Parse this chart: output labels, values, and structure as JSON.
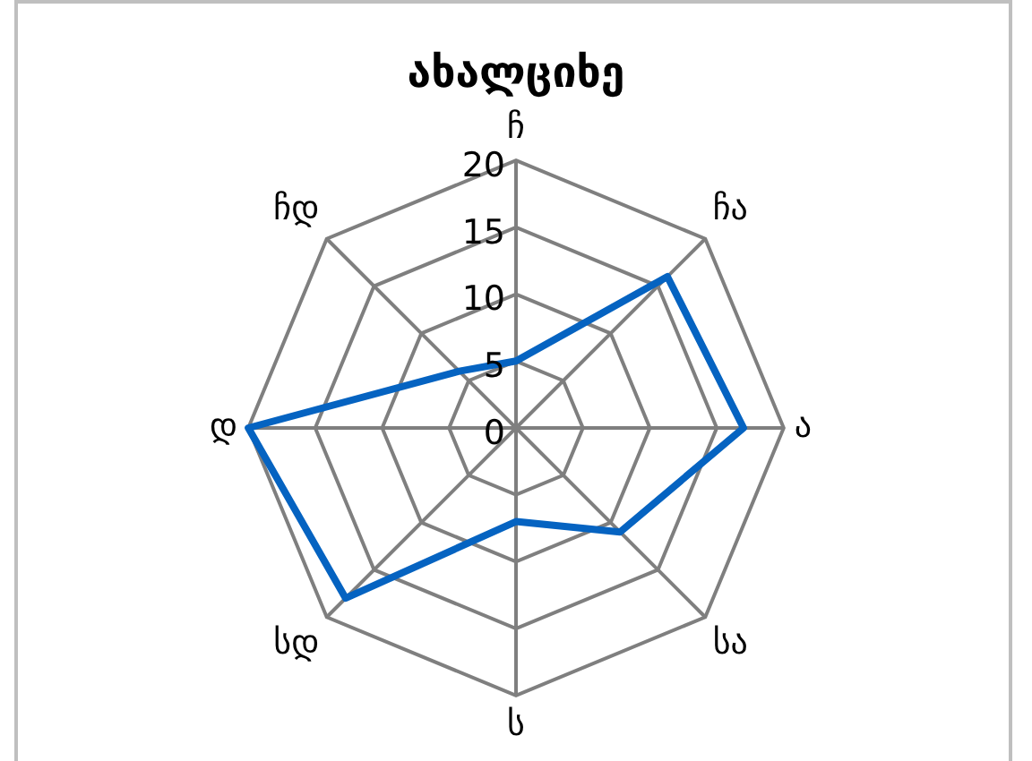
{
  "chart_data": {
    "type": "radar",
    "title": "ახალციხე",
    "categories": [
      "ჩ",
      "ჩა",
      "ა",
      "სა",
      "ს",
      "სდ",
      "დ",
      "ჩდ"
    ],
    "series": [
      {
        "color": "#0563c1",
        "values": [
          5,
          16,
          17,
          11,
          7,
          18,
          20,
          6
        ]
      }
    ],
    "ylim": [
      0,
      20
    ],
    "yticks": [
      0,
      5,
      10,
      15,
      20
    ],
    "grid": true,
    "legend": false,
    "marker": "none"
  }
}
